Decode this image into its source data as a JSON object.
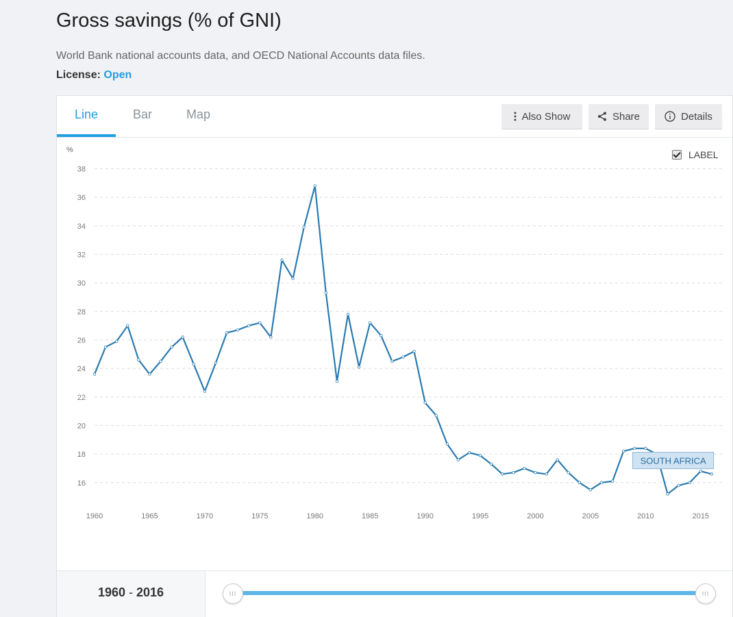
{
  "page": {
    "title": "Gross savings (% of GNI)",
    "source": "World Bank national accounts data, and OECD National Accounts data files.",
    "license_label": "License:",
    "license_value": "Open"
  },
  "tabs": [
    {
      "label": "Line",
      "active": true
    },
    {
      "label": "Bar",
      "active": false
    },
    {
      "label": "Map",
      "active": false
    }
  ],
  "toolbar": {
    "also_show": "Also Show",
    "share": "Share",
    "details": "Details"
  },
  "label_toggle": {
    "text": "LABEL",
    "checked": true
  },
  "range": {
    "start": "1960",
    "end": "2016",
    "separator": "-"
  },
  "colors": {
    "accent": "#1f9ee0",
    "series": "#2a7ab0",
    "callout_bg": "#cfe3f3"
  },
  "chart_data": {
    "type": "line",
    "ylabel": "%",
    "xlabel": "",
    "title": "",
    "ylim": [
      14.5,
      38.5
    ],
    "xlim": [
      1960,
      2017
    ],
    "yticks": [
      16,
      18,
      20,
      22,
      24,
      26,
      28,
      30,
      32,
      34,
      36,
      38
    ],
    "xticks": [
      1960,
      1965,
      1970,
      1975,
      1980,
      1985,
      1990,
      1995,
      2000,
      2005,
      2010,
      2015
    ],
    "grid": true,
    "series": [
      {
        "name": "SOUTH AFRICA",
        "x": [
          1960,
          1961,
          1962,
          1963,
          1964,
          1965,
          1966,
          1967,
          1968,
          1969,
          1970,
          1971,
          1972,
          1973,
          1974,
          1975,
          1976,
          1977,
          1978,
          1979,
          1980,
          1981,
          1982,
          1983,
          1984,
          1985,
          1986,
          1987,
          1988,
          1989,
          1990,
          1991,
          1992,
          1993,
          1994,
          1995,
          1996,
          1997,
          1998,
          1999,
          2000,
          2001,
          2002,
          2003,
          2004,
          2005,
          2006,
          2007,
          2008,
          2009,
          2010,
          2011,
          2012,
          2013,
          2014,
          2015,
          2016
        ],
        "values": [
          23.6,
          25.5,
          25.9,
          27.0,
          24.6,
          23.6,
          24.5,
          25.5,
          26.2,
          24.3,
          22.4,
          24.4,
          26.5,
          26.7,
          27.0,
          27.2,
          26.2,
          31.6,
          30.3,
          33.9,
          36.8,
          29.3,
          23.1,
          27.8,
          24.1,
          27.2,
          26.3,
          24.5,
          24.8,
          25.2,
          21.6,
          20.7,
          18.7,
          17.6,
          18.1,
          17.9,
          17.3,
          16.6,
          16.7,
          17.0,
          16.7,
          16.6,
          17.6,
          16.7,
          16.0,
          15.5,
          16.0,
          16.1,
          18.2,
          18.4,
          18.4,
          18.0,
          15.2,
          15.8,
          16.0,
          16.8,
          16.6
        ]
      }
    ],
    "callout": "SOUTH AFRICA"
  }
}
